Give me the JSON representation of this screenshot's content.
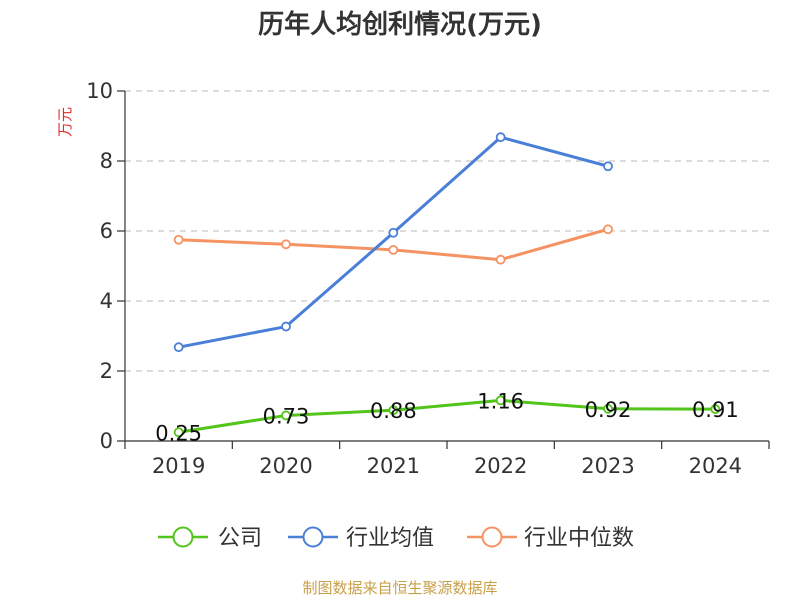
{
  "chart_data": {
    "type": "line",
    "title": "历年人均创利情况(万元)",
    "ylabel": "万元",
    "xlabel": "",
    "categories": [
      "2019",
      "2020",
      "2021",
      "2022",
      "2023",
      "2024"
    ],
    "ylim": [
      0,
      10
    ],
    "yticks": [
      "0",
      "2",
      "4",
      "6",
      "8",
      "10"
    ],
    "grid": true,
    "legend_position": "bottom",
    "series": [
      {
        "name": "公司",
        "color": "#52c41a",
        "values": [
          0.25,
          0.73,
          0.88,
          1.16,
          0.92,
          0.91
        ],
        "labels": [
          "0.25",
          "0.73",
          "0.88",
          "1.16",
          "0.92",
          "0.91"
        ]
      },
      {
        "name": "行业均值",
        "color": "#4a7fd8",
        "values": [
          2.68,
          3.27,
          5.95,
          8.68,
          7.85,
          null
        ]
      },
      {
        "name": "行业中位数",
        "color": "#f59362",
        "values": [
          5.75,
          5.62,
          5.46,
          5.18,
          6.05,
          null
        ]
      }
    ]
  },
  "footer": {
    "source": "制图数据来自恒生聚源数据库"
  }
}
